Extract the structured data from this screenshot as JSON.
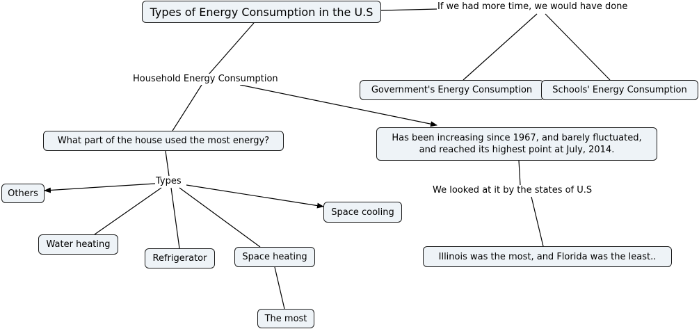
{
  "concepts": {
    "title": "Types of Energy Consumption in the U.S",
    "most_energy_question": "What part of the house used the most energy?",
    "increasing": "Has been increasing since 1967, and barely fluctuated, and reached its highest point at July, 2014.",
    "govt": "Government's Energy Consumption",
    "schools": "Schools' Energy Consumption",
    "others": "Others",
    "water_heating": "Water heating",
    "refrigerator": "Refrigerator",
    "space_heating": "Space heating",
    "space_cooling": "Space cooling",
    "the_most": "The most",
    "illinois": "Illinois was the most, and Florida was the least.."
  },
  "linking_phrases": {
    "household": "Household Energy Consumption",
    "more_time": "If we had more time, we would have done",
    "types": "Types",
    "states": "We looked at it by the states of U.S"
  },
  "colors": {
    "node_fill": "#eef3f7",
    "node_border": "#1a1a1a",
    "line": "#000000"
  }
}
